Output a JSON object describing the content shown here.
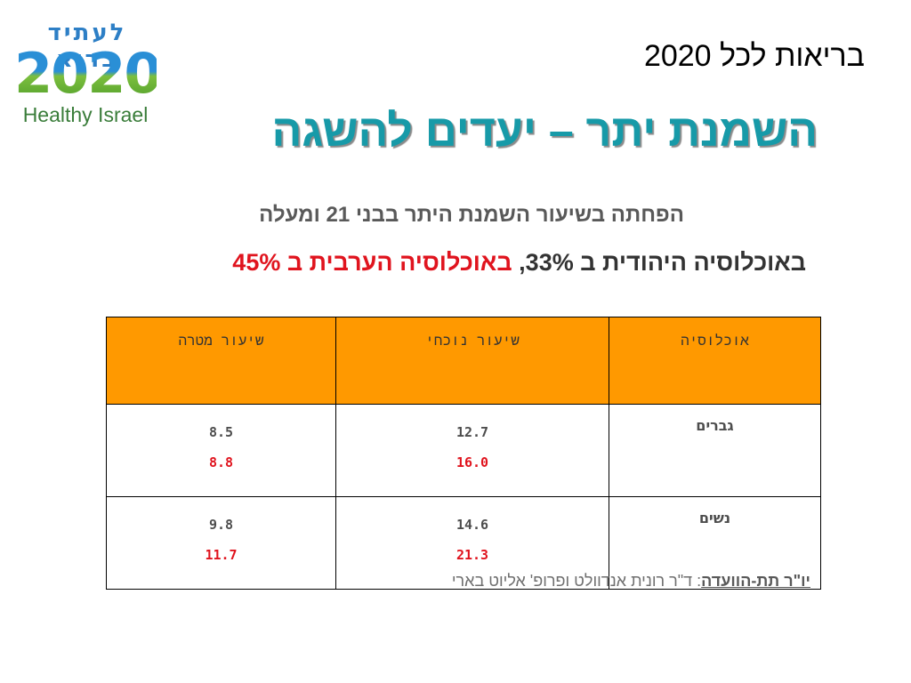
{
  "logo": {
    "hebrew": "לעתיד בריא",
    "year": "2020",
    "english": "Healthy Israel"
  },
  "header": "בריאות לכל 2020",
  "title": "השמנת יתר – יעדים להשגה",
  "subtitle": {
    "line1": "הפחתה בשיעור השמנת היתר בבני 21 ומעלה",
    "line2_start": "באוכלוסיה היהודית ב 33%,",
    "line2_highlight": "באוכלוסיה הערבית ב 45%"
  },
  "table": {
    "headers": [
      "אוכלוסיה",
      "שיעור נוכחי",
      "שיעור מטרה"
    ],
    "rows": [
      {
        "population": "גברים",
        "current": [
          "12.7",
          "16.0"
        ],
        "target": [
          "8.5",
          "8.8"
        ]
      },
      {
        "population": "נשים",
        "current": [
          "14.6",
          "21.3"
        ],
        "target": [
          "9.8",
          "11.7"
        ]
      }
    ]
  },
  "chair": {
    "label": "יו\"ר תת-הוועדה",
    "text": ": ד\"ר רונית אנדוולט ופרופ' אליוט בארי"
  },
  "colors": {
    "title": "#179aa8",
    "header_fill": "#ff9900",
    "highlight_red": "#e0141e"
  }
}
